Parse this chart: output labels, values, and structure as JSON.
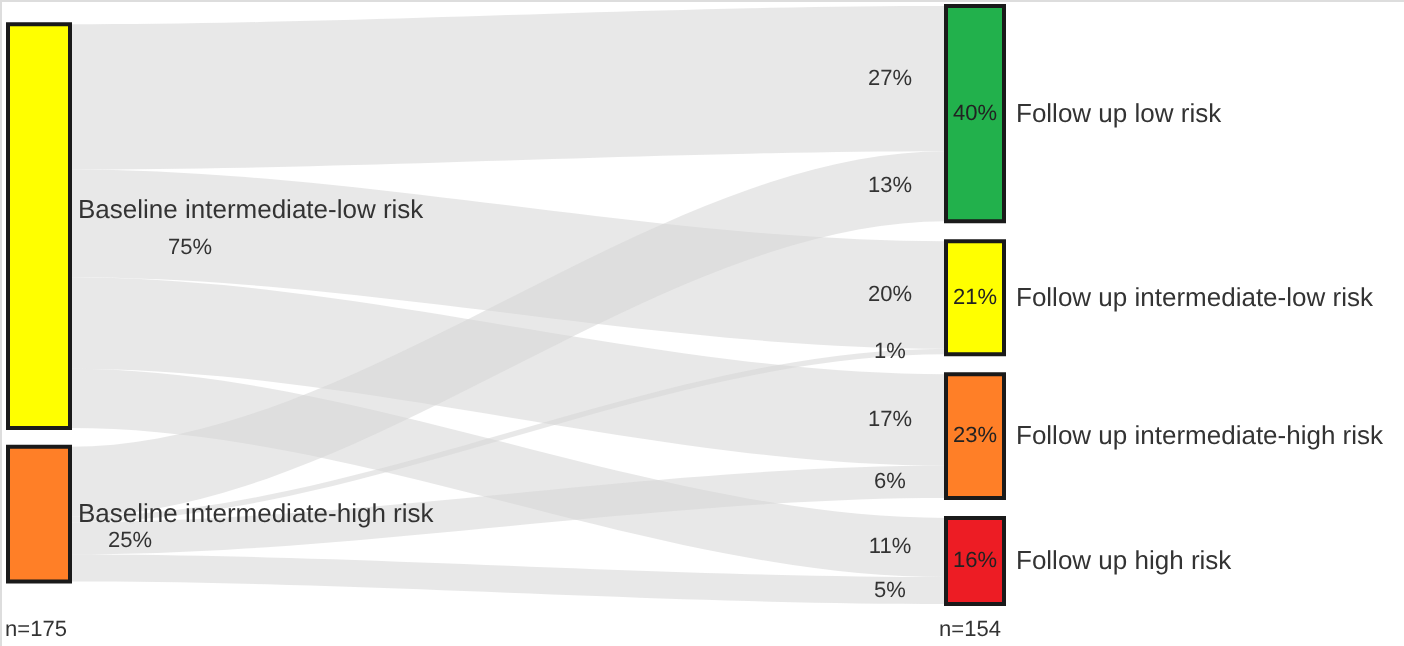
{
  "chart_data": {
    "type": "other",
    "categories": [
      "Follow up low risk",
      "Follow up intermediate-low risk",
      "Follow up intermediate-high risk",
      "Follow up high risk"
    ],
    "colors": [
      "#22b14c",
      "#ffff00",
      "#ff7f27",
      "#ed1c24",
      "#ffff00",
      "#ff7f27"
    ],
    "value_labels": [
      "40%",
      "21%",
      "23%",
      "16%"
    ],
    "series": [
      {
        "name": "Baseline intermediate-low risk",
        "color": "#d6d6d6",
        "values": [
          27,
          20,
          17,
          11
        ],
        "value_labels": [
          "27%",
          "20%",
          "17%",
          "11%"
        ]
      },
      {
        "name": "Baseline intermediate-high risk",
        "color": "#d6d6d6",
        "values": [
          13,
          1,
          6,
          5
        ],
        "value_labels": [
          "13%",
          "1%",
          "6%",
          "5%"
        ]
      }
    ],
    "annotations": [
      "75%",
      "25%",
      "n=175",
      "n=154"
    ]
  }
}
